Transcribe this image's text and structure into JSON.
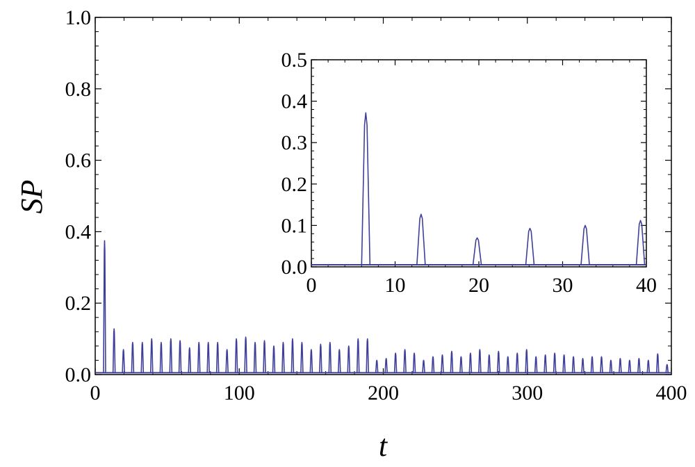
{
  "chart_data": [
    {
      "id": "main",
      "type": "line",
      "title": "",
      "xlabel": "t",
      "ylabel": "SP",
      "xlim": [
        0,
        400
      ],
      "ylim": [
        0,
        1.0
      ],
      "xticks": [
        0,
        100,
        200,
        300,
        400
      ],
      "xtick_labels": [
        "0",
        "100",
        "200",
        "300",
        "400"
      ],
      "yticks": [
        0,
        0.2,
        0.4,
        0.6,
        0.8,
        1.0
      ],
      "ytick_labels": [
        "0.0",
        "0.2",
        "0.4",
        "0.6",
        "0.8",
        "1.0"
      ],
      "grid": false,
      "line_color": "#3f3f9a",
      "series": [
        {
          "baseline": 0.005,
          "peaks": [
            [
              6.5,
              0.375
            ],
            [
              13.1,
              0.128
            ],
            [
              19.6,
              0.07
            ],
            [
              26,
              0.09
            ],
            [
              32.7,
              0.09
            ],
            [
              39.2,
              0.1
            ],
            [
              45.8,
              0.09
            ],
            [
              52.5,
              0.1
            ],
            [
              58.9,
              0.095
            ],
            [
              65.5,
              0.075
            ],
            [
              72,
              0.09
            ],
            [
              78.5,
              0.09
            ],
            [
              85,
              0.09
            ],
            [
              91.5,
              0.07
            ],
            [
              98,
              0.1
            ],
            [
              104.5,
              0.105
            ],
            [
              111,
              0.09
            ],
            [
              117.5,
              0.095
            ],
            [
              124,
              0.08
            ],
            [
              130.5,
              0.09
            ],
            [
              137,
              0.1
            ],
            [
              143.5,
              0.09
            ],
            [
              150,
              0.07
            ],
            [
              156.5,
              0.085
            ],
            [
              163,
              0.09
            ],
            [
              169.5,
              0.07
            ],
            [
              176,
              0.08
            ],
            [
              182.5,
              0.1
            ],
            [
              189,
              0.1
            ],
            [
              195.5,
              0.04
            ],
            [
              202,
              0.045
            ],
            [
              208.5,
              0.06
            ],
            [
              215,
              0.07
            ],
            [
              221.5,
              0.06
            ],
            [
              228,
              0.04
            ],
            [
              234.5,
              0.05
            ],
            [
              241,
              0.055
            ],
            [
              247.5,
              0.065
            ],
            [
              254,
              0.05
            ],
            [
              260.5,
              0.06
            ],
            [
              267,
              0.07
            ],
            [
              273.5,
              0.055
            ],
            [
              280,
              0.065
            ],
            [
              286.5,
              0.05
            ],
            [
              293,
              0.06
            ],
            [
              299.5,
              0.07
            ],
            [
              306,
              0.05
            ],
            [
              312.5,
              0.055
            ],
            [
              319,
              0.06
            ],
            [
              325.5,
              0.055
            ],
            [
              332,
              0.05
            ],
            [
              338.5,
              0.045
            ],
            [
              345,
              0.05
            ],
            [
              351.5,
              0.05
            ],
            [
              358,
              0.04
            ],
            [
              364.5,
              0.045
            ],
            [
              371,
              0.04
            ],
            [
              377.5,
              0.045
            ],
            [
              384,
              0.04
            ],
            [
              390.5,
              0.058
            ],
            [
              397,
              0.028
            ]
          ]
        }
      ]
    },
    {
      "id": "inset",
      "type": "line",
      "title": "",
      "xlabel": "",
      "ylabel": "",
      "xlim": [
        0,
        40
      ],
      "ylim": [
        0,
        0.5
      ],
      "xticks": [
        0,
        10,
        20,
        30,
        40
      ],
      "xtick_labels": [
        "0",
        "10",
        "20",
        "30",
        "40"
      ],
      "yticks": [
        0,
        0.1,
        0.2,
        0.3,
        0.4,
        0.5
      ],
      "ytick_labels": [
        "0.0",
        "0.1",
        "0.2",
        "0.3",
        "0.4",
        "0.5"
      ],
      "grid": false,
      "line_color": "#3f3f9a",
      "series": [
        {
          "baseline": 0.005,
          "peaks": [
            [
              6.5,
              0.372
            ],
            [
              13.1,
              0.127
            ],
            [
              19.8,
              0.07
            ],
            [
              26.1,
              0.093
            ],
            [
              32.7,
              0.1
            ],
            [
              39.3,
              0.112
            ]
          ]
        }
      ]
    }
  ]
}
